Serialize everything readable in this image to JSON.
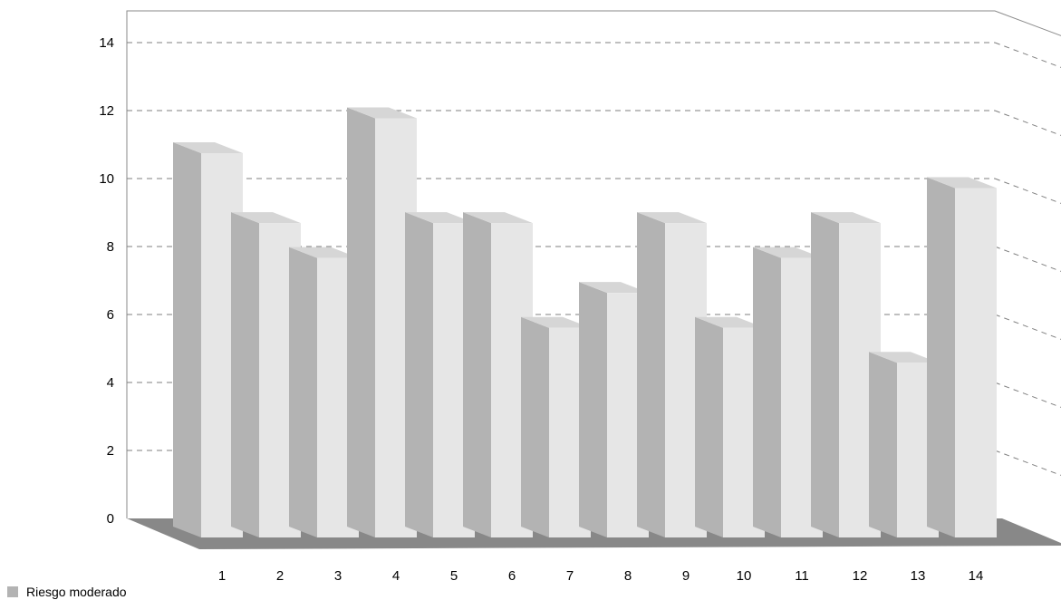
{
  "chart_data": {
    "type": "bar",
    "categories": [
      "1",
      "2",
      "3",
      "4",
      "5",
      "6",
      "7",
      "8",
      "9",
      "10",
      "11",
      "12",
      "13",
      "14"
    ],
    "series": [
      {
        "name": "Riesgo moderado",
        "values": [
          11,
          9,
          8,
          12,
          9,
          9,
          6,
          7,
          9,
          6,
          8,
          9,
          5,
          10
        ]
      }
    ],
    "y_ticks": [
      "0",
      "2",
      "4",
      "6",
      "8",
      "10",
      "12",
      "14"
    ],
    "ylim": [
      0,
      14
    ],
    "grid": true,
    "legend_position": "bottom-left",
    "three_d": true
  },
  "colors": {
    "bar_front": "#e6e6e6",
    "bar_side": "#b3b3b3",
    "bar_top": "#d6d6d6",
    "floor": "#888888",
    "grid": "#7f7f7f",
    "legend_swatch": "#b3b3b3"
  }
}
